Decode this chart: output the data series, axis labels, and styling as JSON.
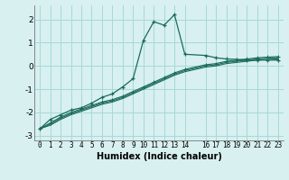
{
  "xlabel": "Humidex (Indice chaleur)",
  "bg_color": "#d8f0f0",
  "grid_color": "#a8d8d8",
  "line_color": "#1a6b5a",
  "xlim": [
    -0.5,
    23.5
  ],
  "ylim": [
    -3.2,
    2.6
  ],
  "yticks": [
    -3,
    -2,
    -1,
    0,
    1,
    2
  ],
  "xticks": [
    0,
    1,
    2,
    3,
    4,
    5,
    6,
    7,
    8,
    9,
    10,
    11,
    12,
    13,
    14,
    16,
    17,
    18,
    19,
    20,
    21,
    22,
    23
  ],
  "curve1_x": [
    0,
    1,
    2,
    3,
    4,
    5,
    6,
    7,
    8,
    9,
    10,
    11,
    12,
    13,
    14,
    16,
    17,
    18,
    19,
    20,
    21,
    22,
    23
  ],
  "curve1_y": [
    -2.7,
    -2.3,
    -2.1,
    -1.9,
    -1.8,
    -1.6,
    -1.35,
    -1.2,
    -0.9,
    -0.55,
    1.1,
    1.9,
    1.75,
    2.2,
    0.5,
    0.45,
    0.35,
    0.3,
    0.28,
    0.25,
    0.25,
    0.25,
    0.25
  ],
  "curve2_x": [
    0,
    1,
    2,
    3,
    4,
    5,
    6,
    7,
    8,
    9,
    10,
    11,
    12,
    13,
    14,
    16,
    17,
    18,
    19,
    20,
    21,
    22,
    23
  ],
  "curve2_y": [
    -2.7,
    -2.45,
    -2.2,
    -2.0,
    -1.85,
    -1.7,
    -1.55,
    -1.45,
    -1.3,
    -1.1,
    -0.9,
    -0.7,
    -0.5,
    -0.3,
    -0.15,
    0.05,
    0.1,
    0.2,
    0.25,
    0.3,
    0.35,
    0.38,
    0.4
  ],
  "curve3_x": [
    0,
    1,
    2,
    3,
    4,
    5,
    6,
    7,
    8,
    9,
    10,
    11,
    12,
    13,
    14,
    16,
    17,
    18,
    19,
    20,
    21,
    22,
    23
  ],
  "curve3_y": [
    -2.7,
    -2.5,
    -2.25,
    -2.05,
    -1.9,
    -1.75,
    -1.6,
    -1.5,
    -1.35,
    -1.15,
    -0.95,
    -0.75,
    -0.55,
    -0.35,
    -0.2,
    0.0,
    0.05,
    0.15,
    0.2,
    0.25,
    0.3,
    0.33,
    0.35
  ],
  "curve4_x": [
    0,
    1,
    2,
    3,
    4,
    5,
    6,
    7,
    8,
    9,
    10,
    11,
    12,
    13,
    14,
    16,
    17,
    18,
    19,
    20,
    21,
    22,
    23
  ],
  "curve4_y": [
    -2.7,
    -2.55,
    -2.3,
    -2.1,
    -1.95,
    -1.8,
    -1.65,
    -1.55,
    -1.4,
    -1.2,
    -1.0,
    -0.8,
    -0.6,
    -0.4,
    -0.25,
    -0.05,
    0.0,
    0.1,
    0.15,
    0.2,
    0.25,
    0.28,
    0.3
  ]
}
